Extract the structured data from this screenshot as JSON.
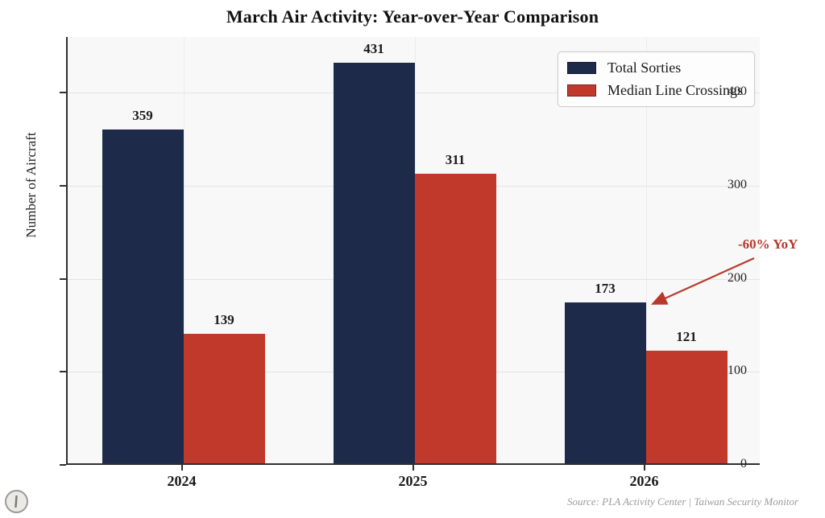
{
  "chart_data": {
    "type": "bar",
    "title": "March Air Activity: Year-over-Year Comparison",
    "xlabel": "",
    "ylabel": "Number of Aircraft",
    "categories": [
      "2024",
      "2025",
      "2026"
    ],
    "series": [
      {
        "name": "Total Sorties",
        "color": "#1e2a4a",
        "values": [
          359,
          431,
          173
        ]
      },
      {
        "name": "Median Line Crossings",
        "color": "#c0392b",
        "values": [
          139,
          311,
          121
        ]
      }
    ],
    "ylim": [
      0,
      460
    ],
    "yticks": [
      0,
      100,
      200,
      300,
      400
    ],
    "grid": true,
    "legend_position": "upper right",
    "bar_value_labels": [
      359,
      139,
      431,
      311,
      173,
      121
    ],
    "annotation": {
      "text": "-60% YoY",
      "color": "#b8392b",
      "points_to": "top of 2026 Total Sorties bar"
    },
    "source": "Source: PLA Activity Center | Taiwan Security Monitor"
  }
}
